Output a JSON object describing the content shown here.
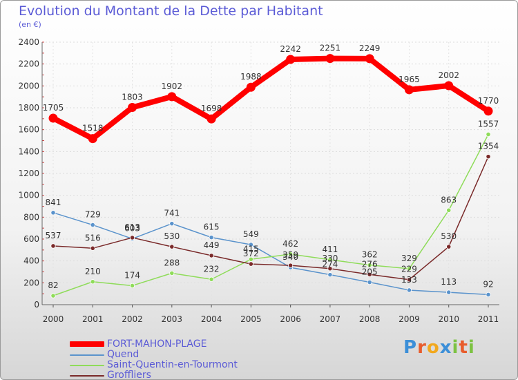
{
  "chart_data": {
    "type": "line",
    "title": "Evolution du Montant de la Dette par Habitant",
    "subtitle": "(en €)",
    "xlabel": "",
    "ylabel": "",
    "ylim": [
      0,
      2400
    ],
    "yticks": [
      0,
      200,
      400,
      600,
      800,
      1000,
      1200,
      1400,
      1600,
      1800,
      2000,
      2200,
      2400
    ],
    "categories": [
      "2000",
      "2001",
      "2002",
      "2003",
      "2004",
      "2005",
      "2006",
      "2007",
      "2008",
      "2009",
      "2010",
      "2011"
    ],
    "grid": true,
    "legend": "bottom-left",
    "series": [
      {
        "name": "FORT-MAHON-PLAGE",
        "color": "#ff0000",
        "values": [
          1705,
          1518,
          1803,
          1902,
          1698,
          1988,
          2242,
          2251,
          2249,
          1965,
          2002,
          1770
        ]
      },
      {
        "name": "Quend",
        "color": "#5a93cc",
        "values": [
          841,
          729,
          603,
          741,
          615,
          549,
          340,
          274,
          205,
          133,
          113,
          92
        ]
      },
      {
        "name": "Saint-Quentin-en-Tourmont",
        "color": "#8fdc5a",
        "values": [
          82,
          210,
          174,
          288,
          232,
          415,
          462,
          411,
          362,
          329,
          863,
          1557
        ]
      },
      {
        "name": "Groffliers",
        "color": "#7a2a2a",
        "values": [
          537,
          516,
          613,
          530,
          449,
          372,
          359,
          330,
          276,
          229,
          530,
          1354
        ]
      }
    ]
  },
  "brand": {
    "letters": [
      "P",
      "r",
      "o",
      "x",
      "i",
      "t",
      "i"
    ],
    "colors": [
      "#3c8fd8",
      "#e85c2c",
      "#f2a81d",
      "#3c8fd8",
      "#7cc242",
      "#e85c2c",
      "#7cc242"
    ]
  }
}
